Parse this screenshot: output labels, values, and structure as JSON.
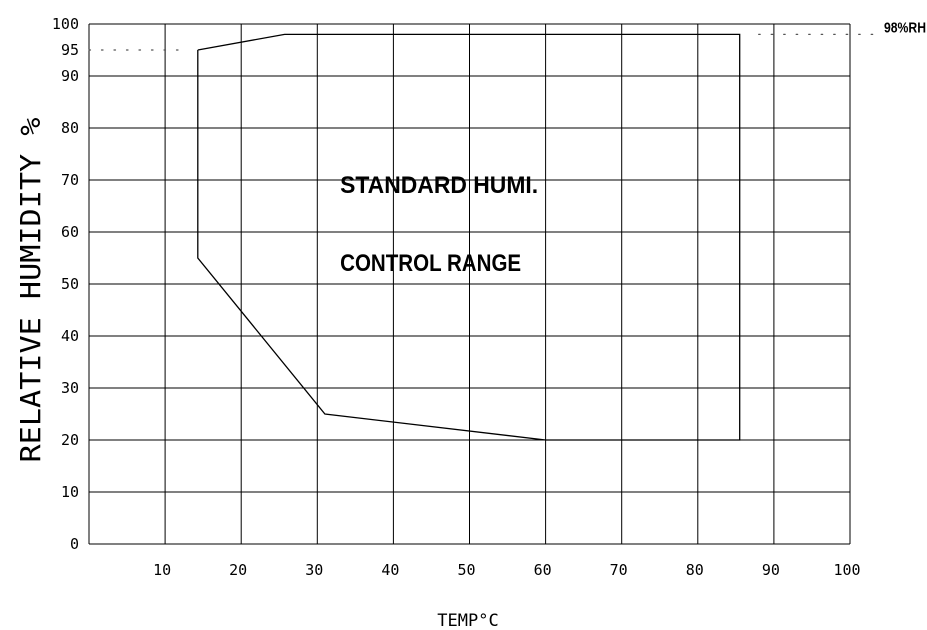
{
  "chart_data": {
    "type": "line",
    "xlabel": "TEMP°C",
    "ylabel": "RELATIVE HUMIDITY %",
    "xlim": [
      0,
      100
    ],
    "ylim": [
      0,
      100
    ],
    "x_ticks": [
      "10",
      "20",
      "30",
      "40",
      "50",
      "60",
      "70",
      "80",
      "90",
      "100"
    ],
    "y_ticks": [
      "0",
      "10",
      "20",
      "30",
      "40",
      "50",
      "60",
      "70",
      "80",
      "90",
      "95",
      "100"
    ],
    "grid": true,
    "series": [
      {
        "points": [
          {
            "x": 14.3,
            "y": 95
          },
          {
            "x": 25.7,
            "y": 98
          },
          {
            "x": 85.5,
            "y": 98
          },
          {
            "x": 85.5,
            "y": 20
          },
          {
            "x": 60,
            "y": 20
          },
          {
            "x": 31,
            "y": 25
          },
          {
            "x": 14.3,
            "y": 55
          },
          {
            "x": 14.3,
            "y": 95
          }
        ],
        "color": "#000000"
      }
    ],
    "reference_lines": [
      {
        "y": 95,
        "x_from": 0,
        "x_to": 12.5,
        "style": "dotted"
      },
      {
        "y": 98,
        "x_from": 88,
        "x_to": 104,
        "style": "dotted",
        "label": "98%RH"
      }
    ],
    "annotations": [
      {
        "text": "STANDARD HUMI.",
        "x": 33,
        "y": 67.5
      },
      {
        "text": "CONTROL RANGE",
        "x": 33,
        "y": 52.5
      }
    ]
  }
}
